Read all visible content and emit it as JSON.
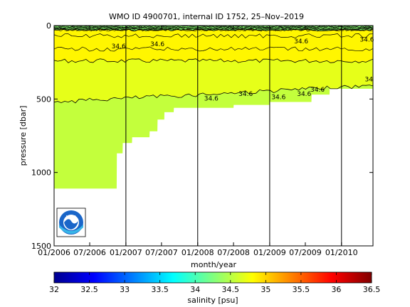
{
  "chart_data": [
    {
      "type": "area",
      "title": "WMO ID 4900701, internal ID 1752, 25–Nov–2019",
      "xlabel": "month/year",
      "ylabel": "pressure [dbar]",
      "x_tick_labels": [
        "01/2006",
        "07/2006",
        "01/2007",
        "07/2007",
        "01/2008",
        "07/2008",
        "01/2009",
        "07/2009",
        "01/2010"
      ],
      "x_range": [
        "2006-01-01",
        "2010-06-10"
      ],
      "y_tick_labels": [
        "0",
        "500",
        "1000",
        "1500"
      ],
      "y_range": [
        0,
        1500
      ],
      "y_reversed": true,
      "grid": false,
      "year_markers": [
        "2007-01-01",
        "2008-01-01",
        "2009-01-01",
        "2010-01-01"
      ],
      "depth_profile_bottom": [
        {
          "date": "2006-01-01",
          "pressure": 1110
        },
        {
          "date": "2006-11-15",
          "pressure": 1110
        },
        {
          "date": "2006-11-16",
          "pressure": 870
        },
        {
          "date": "2006-12-15",
          "pressure": 870
        },
        {
          "date": "2006-12-16",
          "pressure": 800
        },
        {
          "date": "2007-02-01",
          "pressure": 800
        },
        {
          "date": "2007-02-02",
          "pressure": 760
        },
        {
          "date": "2007-05-01",
          "pressure": 760
        },
        {
          "date": "2007-05-02",
          "pressure": 720
        },
        {
          "date": "2007-06-10",
          "pressure": 720
        },
        {
          "date": "2007-06-11",
          "pressure": 640
        },
        {
          "date": "2007-07-15",
          "pressure": 640
        },
        {
          "date": "2007-07-16",
          "pressure": 590
        },
        {
          "date": "2007-09-01",
          "pressure": 590
        },
        {
          "date": "2007-09-02",
          "pressure": 560
        },
        {
          "date": "2008-07-01",
          "pressure": 560
        },
        {
          "date": "2008-07-02",
          "pressure": 540
        },
        {
          "date": "2009-01-01",
          "pressure": 540
        },
        {
          "date": "2009-01-02",
          "pressure": 520
        },
        {
          "date": "2009-08-01",
          "pressure": 520
        },
        {
          "date": "2009-08-02",
          "pressure": 470
        },
        {
          "date": "2009-11-01",
          "pressure": 470
        },
        {
          "date": "2009-11-02",
          "pressure": 430
        },
        {
          "date": "2010-06-10",
          "pressure": 430
        }
      ],
      "salinity_layers": [
        {
          "from_pressure": 0,
          "to_pressure": 30,
          "salinity": 34.3
        },
        {
          "from_pressure": 30,
          "to_pressure": 240,
          "salinity": 34.85
        },
        {
          "from_pressure": 240,
          "to_pressure": 520,
          "salinity": 34.7
        },
        {
          "from_pressure": 520,
          "to_pressure": 1110,
          "salinity": 34.55
        }
      ],
      "contour_labels": [
        {
          "text": "34.6",
          "date": "2009-06-10",
          "pressure": 120
        },
        {
          "text": "34.6",
          "date": "2007-06-10",
          "pressure": 140
        },
        {
          "text": "34.6",
          "date": "2008-03-10",
          "pressure": 510
        },
        {
          "text": "34.6",
          "date": "2008-09-01",
          "pressure": 480
        },
        {
          "text": "34.6",
          "date": "2009-02-15",
          "pressure": 500
        },
        {
          "text": "34.6",
          "date": "2009-06-25",
          "pressure": 480
        },
        {
          "text": "34.6",
          "date": "2009-09-01",
          "pressure": 450
        },
        {
          "text": "34.6",
          "date": "2010-05-10",
          "pressure": 110
        },
        {
          "text": "34",
          "date": "2010-05-20",
          "pressure": 380
        },
        {
          "text": "34.6",
          "date": "2006-11-25",
          "pressure": 155
        }
      ],
      "logo": "noaa-logo"
    },
    {
      "type": "heatmap",
      "colorbar_label": "salinity [psu]",
      "range": [
        32,
        36.5
      ],
      "tick_labels": [
        "32",
        "32.5",
        "33",
        "33.5",
        "34",
        "34.5",
        "35",
        "35.5",
        "36",
        "36.5"
      ],
      "colormap": "jet"
    }
  ]
}
